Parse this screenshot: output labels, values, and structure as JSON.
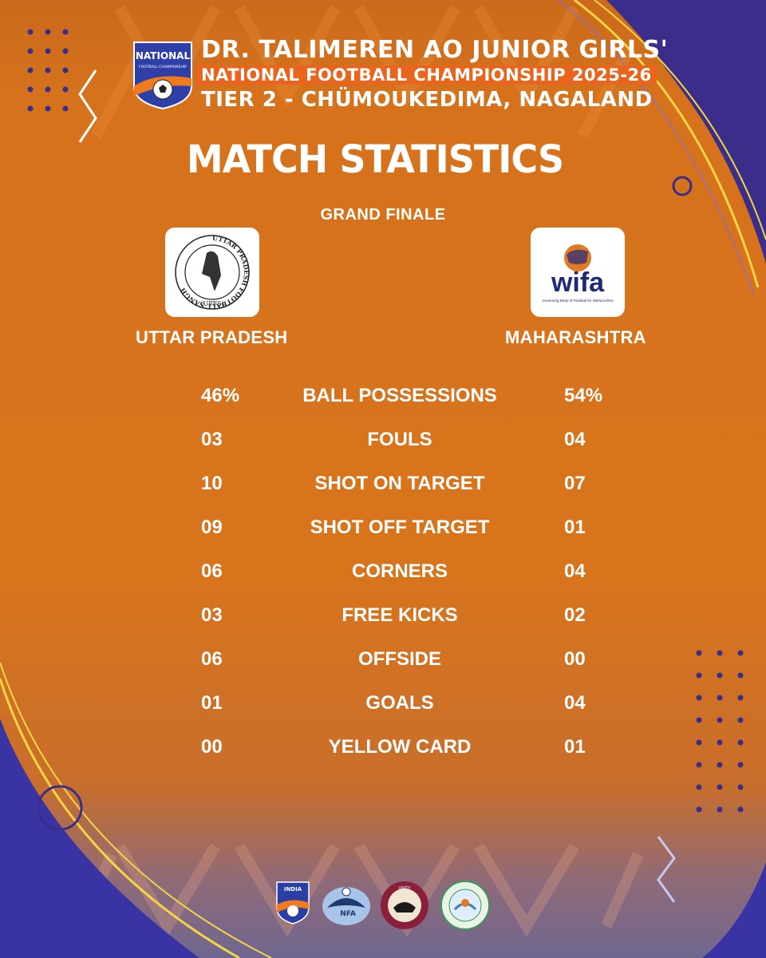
{
  "colors": {
    "background": "#d8741c",
    "accent_purple": "#3b2e8a",
    "accent_yellow": "#f2d544",
    "text": "#ffffff"
  },
  "header": {
    "logo_label": "NATIONAL",
    "logo_sublabel": "FOOTBALL CHAMPIONSHIP",
    "line1": "DR. TALIMEREN AO JUNIOR GIRLS'",
    "line2": "NATIONAL FOOTBALL CHAMPIONSHIP 2025-26",
    "line3": "TIER 2 - CHÜMOUKEDIMA, NAGALAND"
  },
  "title": "MATCH STATISTICS",
  "stage": "GRAND FINALE",
  "home": {
    "name": "UTTAR PRADESH",
    "logo_ring_text": "UTTAR PRADESH FOOTBALL SANGH",
    "logo_abbr": "(UPFS)"
  },
  "away": {
    "name": "MAHARASHTRA",
    "logo_text": "wifa",
    "logo_caption": "Governing Body of Football for Maharashtra"
  },
  "stats": [
    {
      "home": "46%",
      "label": "BALL POSSESSIONS",
      "away": "54%"
    },
    {
      "home": "03",
      "label": "FOULS",
      "away": "04"
    },
    {
      "home": "10",
      "label": "SHOT ON TARGET",
      "away": "07"
    },
    {
      "home": "09",
      "label": "SHOT OFF TARGET",
      "away": "01"
    },
    {
      "home": "06",
      "label": "CORNERS",
      "away": "04"
    },
    {
      "home": "03",
      "label": "FREE KICKS",
      "away": "02"
    },
    {
      "home": "06",
      "label": "OFFSIDE",
      "away": "00"
    },
    {
      "home": "01",
      "label": "GOALS",
      "away": "04"
    },
    {
      "home": "00",
      "label": "YELLOW CARD",
      "away": "01"
    }
  ],
  "sponsors": [
    {
      "name": "INDIA",
      "icon": "aiff-shield-icon"
    },
    {
      "name": "NFA",
      "icon": "nfa-mithun-icon"
    },
    {
      "name": "UNITY",
      "icon": "government-of-nagaland-seal-icon"
    },
    {
      "name": "",
      "icon": "nagaland-association-emblem-icon"
    }
  ]
}
